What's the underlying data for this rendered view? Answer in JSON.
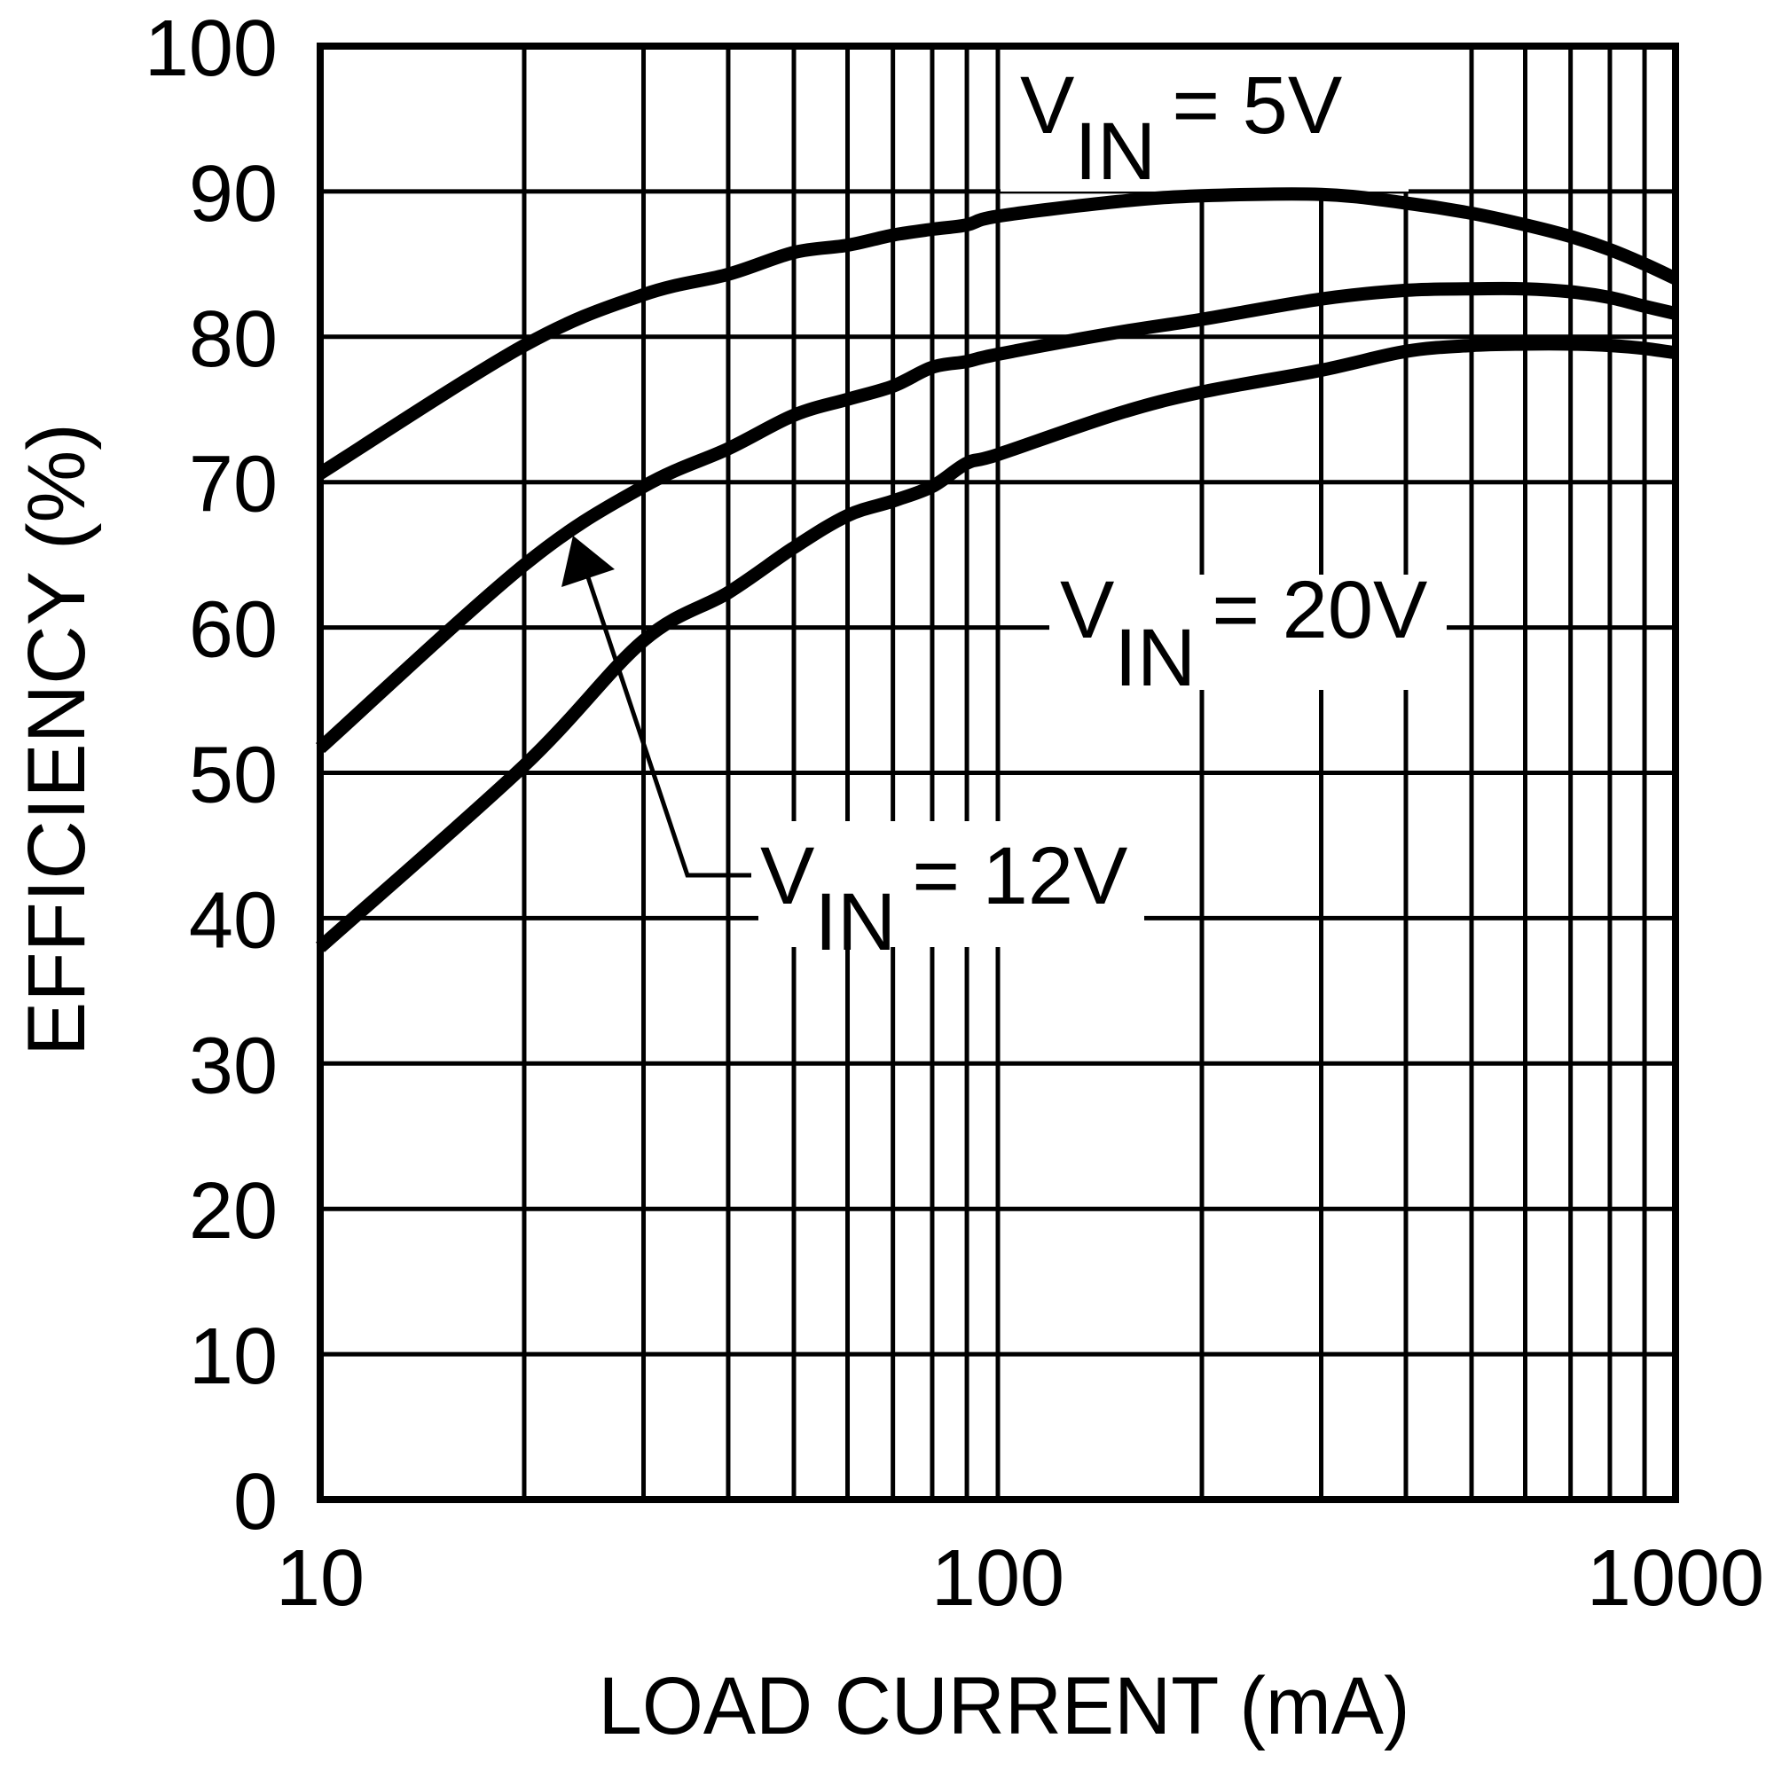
{
  "chart_data": {
    "type": "line",
    "title": "",
    "xlabel": "LOAD CURRENT (mA)",
    "ylabel": "EFFICIENCY (%)",
    "x_scale": "log",
    "xlim": [
      10,
      1000
    ],
    "ylim": [
      0,
      100
    ],
    "grid": true,
    "x_ticks": [
      10,
      100,
      1000
    ],
    "x_tick_labels": [
      "10",
      "100",
      "1000"
    ],
    "x_minor_grid": [
      20,
      30,
      40,
      50,
      60,
      70,
      80,
      90,
      200,
      300,
      400,
      500,
      600,
      700,
      800,
      900
    ],
    "y_ticks": [
      0,
      10,
      20,
      30,
      40,
      50,
      60,
      70,
      80,
      90,
      100
    ],
    "y_tick_labels": [
      "0",
      "10",
      "20",
      "30",
      "40",
      "50",
      "60",
      "70",
      "80",
      "90",
      "100"
    ],
    "legend": "none (inline annotations)",
    "x": [
      10,
      20,
      30,
      40,
      50,
      60,
      70,
      80,
      90,
      100,
      150,
      200,
      300,
      400,
      500,
      600,
      700,
      800,
      900,
      1000
    ],
    "series": [
      {
        "name": "VIN = 5V",
        "label_main": "V",
        "label_sub": "IN",
        "label_rest": "= 5V",
        "values": [
          70.6,
          79.4,
          82.9,
          84.3,
          85.8,
          86.3,
          87.0,
          87.4,
          87.7,
          88.3,
          89.3,
          89.7,
          89.8,
          89.2,
          88.5,
          87.7,
          86.9,
          86.0,
          85.0,
          84.0
        ]
      },
      {
        "name": "VIN = 20V",
        "label_main": "V",
        "label_sub": "IN",
        "label_rest": "= 20V",
        "values": [
          51.7,
          64.3,
          69.7,
          72.3,
          74.6,
          75.7,
          76.6,
          77.9,
          78.3,
          78.8,
          80.3,
          81.2,
          82.6,
          83.2,
          83.3,
          83.3,
          83.1,
          82.7,
          82.1,
          81.6
        ]
      },
      {
        "name": "VIN = 12V",
        "label_main": "V",
        "label_sub": "IN",
        "label_rest": "= 12V",
        "values": [
          38.0,
          50.5,
          59.1,
          62.4,
          65.5,
          67.7,
          68.7,
          69.7,
          71.3,
          71.9,
          74.7,
          76.2,
          77.7,
          79.0,
          79.4,
          79.5,
          79.5,
          79.4,
          79.2,
          78.9
        ]
      }
    ],
    "annotations": [
      {
        "text": "VIN = 5V",
        "series": "VIN = 5V",
        "position": "top, above curve near 150–400 mA"
      },
      {
        "text": "VIN = 20V",
        "series": "VIN = 20V",
        "position": "middle right, ~60% level near 150–500 mA"
      },
      {
        "text": "VIN = 12V",
        "series": "VIN = 12V",
        "position": "lower middle with arrow pointing to 20V-region curve near 25 mA",
        "arrow": true
      }
    ],
    "colors": {
      "line": "#000000",
      "grid": "#000000",
      "background": "#ffffff"
    }
  }
}
